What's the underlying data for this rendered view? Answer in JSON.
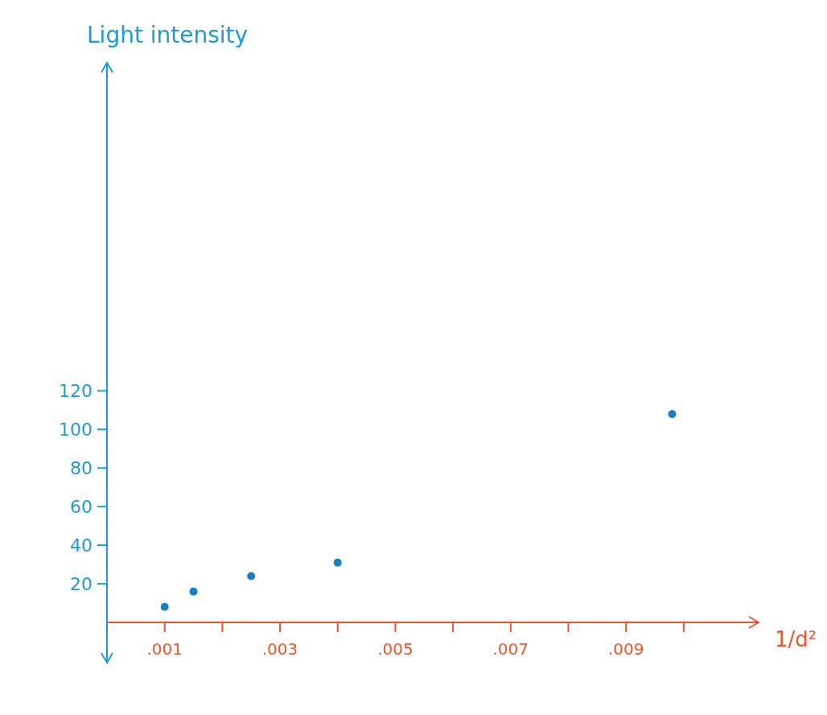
{
  "chart_data": {
    "type": "scatter",
    "xlabel": "1/d²",
    "ylabel": "Light intensity",
    "x": [
      0.001,
      0.0015,
      0.0025,
      0.004,
      0.0098
    ],
    "values": [
      8,
      16,
      24,
      31,
      108
    ],
    "color": "#1a7fc4",
    "marker": "circle",
    "grid": false,
    "xlim": [
      0,
      0.0113
    ],
    "ylim": [
      0,
      290
    ],
    "xticks": [
      {
        "value": 0.001,
        "label": ".001"
      },
      {
        "value": 0.002,
        "label": null
      },
      {
        "value": 0.003,
        "label": ".003"
      },
      {
        "value": 0.004,
        "label": null
      },
      {
        "value": 0.005,
        "label": ".005"
      },
      {
        "value": 0.006,
        "label": null
      },
      {
        "value": 0.007,
        "label": ".007"
      },
      {
        "value": 0.008,
        "label": null
      },
      {
        "value": 0.009,
        "label": ".009"
      },
      {
        "value": 0.01,
        "label": null
      }
    ],
    "yticks": [
      20,
      40,
      60,
      80,
      100,
      120
    ]
  }
}
